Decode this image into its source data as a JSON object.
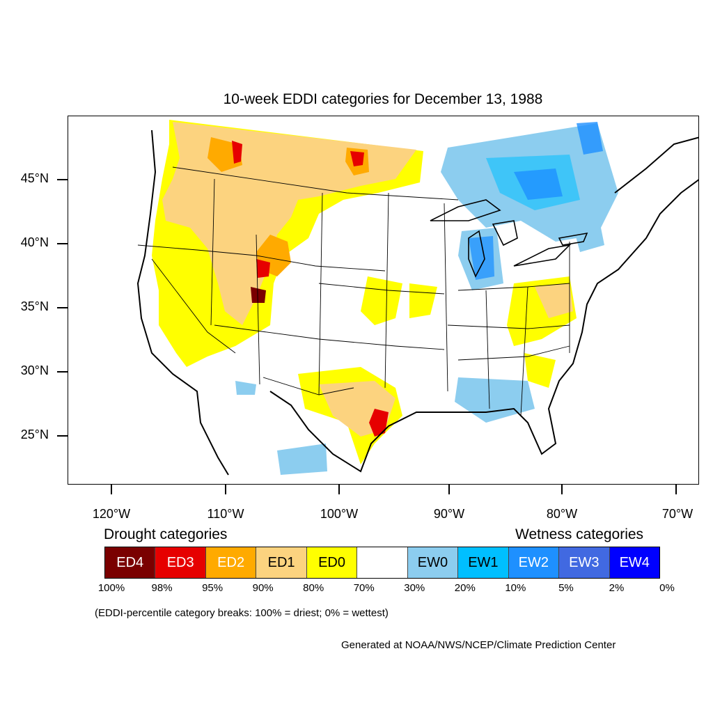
{
  "title": "10-week EDDI categories for December 13, 1988",
  "latitude_labels": [
    "45°N",
    "40°N",
    "35°N",
    "30°N",
    "25°N"
  ],
  "longitude_labels": [
    "120°W",
    "110°W",
    "100°W",
    "90°W",
    "80°W",
    "70°W"
  ],
  "legend": {
    "drought_heading": "Drought categories",
    "wetness_heading": "Wetness categories",
    "categories": [
      {
        "label": "ED4",
        "color": "#7a0000",
        "text_color": "#ffffff"
      },
      {
        "label": "ED3",
        "color": "#e60000",
        "text_color": "#ffffff"
      },
      {
        "label": "ED2",
        "color": "#ffaa00",
        "text_color": "#ffffff"
      },
      {
        "label": "ED1",
        "color": "#fcd37f",
        "text_color": "#000000"
      },
      {
        "label": "ED0",
        "color": "#ffff00",
        "text_color": "#000000"
      },
      {
        "label": "",
        "color": "#ffffff",
        "text_color": "#000000"
      },
      {
        "label": "EW0",
        "color": "#8ccdef",
        "text_color": "#000000"
      },
      {
        "label": "EW1",
        "color": "#00bfff",
        "text_color": "#000000"
      },
      {
        "label": "EW2",
        "color": "#1e90ff",
        "text_color": "#ffffff"
      },
      {
        "label": "EW3",
        "color": "#4169e1",
        "text_color": "#ffffff"
      },
      {
        "label": "EW4",
        "color": "#0000ff",
        "text_color": "#ffffff"
      }
    ],
    "percentiles": [
      "100%",
      "98%",
      "95%",
      "90%",
      "80%",
      "70%",
      "30%",
      "20%",
      "10%",
      "5%",
      "2%",
      "0%"
    ]
  },
  "note": "(EDDI-percentile category breaks: 100% = driest; 0% = wettest)",
  "credit": "Generated at NOAA/NWS/NCEP/Climate Prediction Center"
}
